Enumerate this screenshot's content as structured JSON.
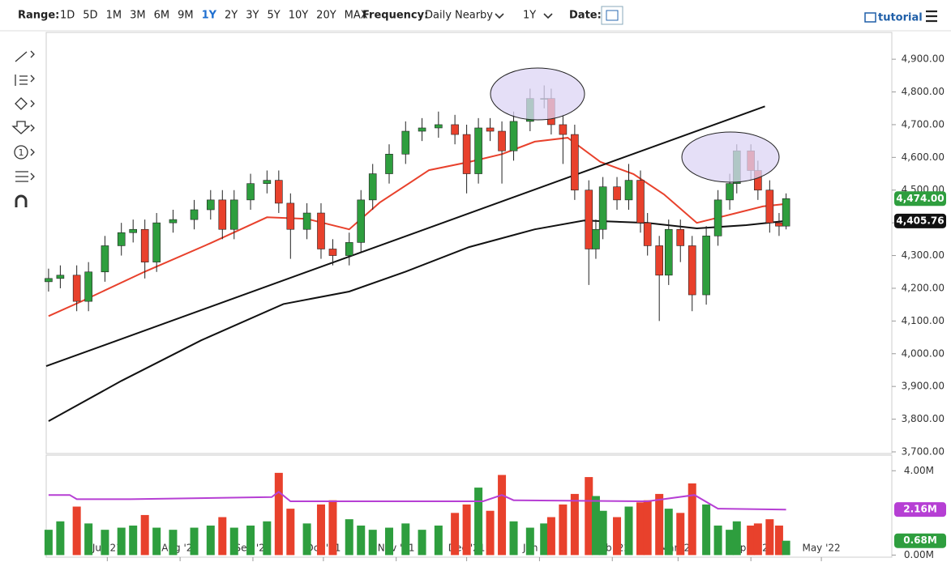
{
  "toolbar": {
    "range_label": "Range:",
    "ranges": [
      "1D",
      "5D",
      "1M",
      "3M",
      "6M",
      "9M",
      "1Y",
      "2Y",
      "3Y",
      "5Y",
      "10Y",
      "20Y",
      "MAX"
    ],
    "active_range": 6,
    "frequency_label": "Frequency:",
    "frequency": "Daily Nearby",
    "period": "1Y",
    "date_label": "Date:",
    "tutorial": "tutorial"
  },
  "chart_data": [
    {
      "type": "candlestick",
      "up_color": "#2e9e3e",
      "down_color": "#e8412c",
      "wick_color": "#222222",
      "xlim": [
        4,
        364
      ],
      "ylim": [
        3695,
        4982
      ],
      "xticks": [
        {
          "value": 30,
          "label": "Jul '21"
        },
        {
          "value": 61,
          "label": "Aug '21"
        },
        {
          "value": 92,
          "label": "Sep '21"
        },
        {
          "value": 122,
          "label": "Oct '21"
        },
        {
          "value": 153,
          "label": "Nov '21"
        },
        {
          "value": 183,
          "label": "Dec '21"
        },
        {
          "value": 214,
          "label": "Jan '22"
        },
        {
          "value": 245,
          "label": "Feb '22"
        },
        {
          "value": 273,
          "label": "Mar '22"
        },
        {
          "value": 304,
          "label": "Apr '22"
        },
        {
          "value": 334,
          "label": "May '22"
        }
      ],
      "yticks": [
        {
          "value": 3700,
          "label": "3,700.00"
        },
        {
          "value": 3800,
          "label": "3,800.00"
        },
        {
          "value": 3900,
          "label": "3,900.00"
        },
        {
          "value": 4000,
          "label": "4,000.00"
        },
        {
          "value": 4100,
          "label": "4,100.00"
        },
        {
          "value": 4200,
          "label": "4,200.00"
        },
        {
          "value": 4300,
          "label": "4,300.00"
        },
        {
          "value": 4400,
          "label": "4,400.00"
        },
        {
          "value": 4500,
          "label": "4,500.00"
        },
        {
          "value": 4600,
          "label": "4,600.00"
        },
        {
          "value": 4700,
          "label": "4,700.00"
        },
        {
          "value": 4800,
          "label": "4,800.00"
        },
        {
          "value": 4900,
          "label": "4,900.00"
        }
      ],
      "x": [
        5,
        10,
        17,
        22,
        29,
        36,
        41,
        46,
        51,
        58,
        67,
        74,
        79,
        84,
        91,
        98,
        103,
        108,
        115,
        121,
        126,
        133,
        138,
        143,
        150,
        157,
        164,
        171,
        178,
        183,
        188,
        193,
        198,
        203,
        210,
        216,
        219,
        224,
        229,
        235,
        238,
        241,
        247,
        252,
        257,
        260,
        265,
        269,
        274,
        279,
        285,
        290,
        295,
        298,
        304,
        307,
        312,
        316,
        319
      ],
      "open": [
        4220,
        4230,
        4240,
        4160,
        4250,
        4330,
        4370,
        4380,
        4280,
        4400,
        4410,
        4440,
        4470,
        4380,
        4470,
        4520,
        4530,
        4460,
        4380,
        4430,
        4320,
        4300,
        4340,
        4470,
        4550,
        4610,
        4680,
        4690,
        4700,
        4670,
        4550,
        4690,
        4680,
        4620,
        4710,
        4780,
        4780,
        4700,
        4670,
        4500,
        4320,
        4380,
        4510,
        4470,
        4530,
        4400,
        4330,
        4240,
        4380,
        4330,
        4180,
        4360,
        4470,
        4520,
        4620,
        4560,
        4500,
        4400,
        4390
      ],
      "high": [
        4260,
        4270,
        4270,
        4280,
        4360,
        4400,
        4410,
        4410,
        4430,
        4440,
        4470,
        4500,
        4500,
        4500,
        4550,
        4560,
        4560,
        4490,
        4460,
        4460,
        4350,
        4370,
        4500,
        4580,
        4640,
        4710,
        4720,
        4740,
        4730,
        4700,
        4720,
        4720,
        4710,
        4740,
        4810,
        4820,
        4810,
        4730,
        4700,
        4530,
        4410,
        4540,
        4540,
        4580,
        4560,
        4430,
        4360,
        4410,
        4410,
        4360,
        4390,
        4500,
        4550,
        4640,
        4640,
        4590,
        4530,
        4430,
        4490
      ],
      "low": [
        4190,
        4200,
        4130,
        4130,
        4220,
        4300,
        4340,
        4230,
        4250,
        4370,
        4380,
        4410,
        4350,
        4350,
        4440,
        4490,
        4430,
        4290,
        4350,
        4290,
        4270,
        4270,
        4310,
        4440,
        4520,
        4580,
        4650,
        4660,
        4640,
        4490,
        4520,
        4650,
        4520,
        4590,
        4680,
        4750,
        4670,
        4580,
        4470,
        4210,
        4290,
        4350,
        4440,
        4440,
        4370,
        4300,
        4100,
        4210,
        4280,
        4130,
        4150,
        4330,
        4440,
        4490,
        4530,
        4470,
        4370,
        4360,
        4380
      ],
      "close": [
        4230,
        4240,
        4160,
        4250,
        4330,
        4370,
        4380,
        4280,
        4400,
        4410,
        4440,
        4470,
        4380,
        4470,
        4520,
        4530,
        4460,
        4380,
        4430,
        4320,
        4300,
        4340,
        4470,
        4550,
        4610,
        4680,
        4690,
        4700,
        4670,
        4550,
        4690,
        4680,
        4620,
        4710,
        4780,
        4780,
        4700,
        4670,
        4500,
        4320,
        4380,
        4510,
        4470,
        4530,
        4400,
        4330,
        4240,
        4380,
        4330,
        4180,
        4360,
        4470,
        4520,
        4620,
        4560,
        4500,
        4400,
        4390,
        4474
      ],
      "last_label": {
        "value": 4474,
        "label": "4,474.00",
        "color": "#2e9e3e"
      },
      "lines": [
        {
          "color": "#e8412c",
          "x": [
            5,
            19,
            46,
            74,
            98,
            115,
            133,
            146,
            167,
            184,
            198,
            212,
            226,
            240,
            254,
            267,
            281,
            295,
            309,
            319
          ],
          "values": [
            4115,
            4160,
            4251,
            4338,
            4417,
            4412,
            4380,
            4462,
            4561,
            4586,
            4610,
            4648,
            4660,
            4586,
            4549,
            4487,
            4400,
            4425,
            4450,
            4458
          ]
        },
        {
          "color": "#111111",
          "x": [
            5,
            36,
            70,
            105,
            133,
            157,
            184,
            212,
            233,
            260,
            281,
            302,
            319
          ],
          "values": [
            3794,
            3917,
            4041,
            4152,
            4190,
            4251,
            4326,
            4380,
            4407,
            4400,
            4383,
            4393,
            4405.76
          ],
          "value_labels": [
            null,
            null,
            null,
            null,
            null,
            null,
            null,
            null,
            null,
            null,
            null,
            null,
            "4,405.76"
          ]
        },
        {
          "color": "#111111",
          "x": [
            4,
            310
          ],
          "values": [
            3962,
            4756
          ]
        }
      ]
    },
    {
      "type": "bar",
      "up_color": "#2e9e3e",
      "down_color": "#e8412c",
      "xlim": [
        4,
        364
      ],
      "ylim": [
        -0.1,
        4.74
      ],
      "yticks": [
        {
          "value": 0,
          "label": "0.00M"
        },
        {
          "value": 4,
          "label": "4.00M"
        }
      ],
      "values": [
        1.2,
        1.6,
        2.3,
        1.5,
        1.2,
        1.3,
        1.4,
        1.9,
        1.3,
        1.2,
        1.3,
        1.4,
        1.8,
        1.3,
        1.4,
        1.6,
        3.9,
        2.2,
        1.5,
        2.4,
        2.6,
        1.7,
        1.4,
        1.2,
        1.3,
        1.5,
        1.2,
        1.4,
        2.0,
        2.4,
        3.2,
        2.1,
        3.8,
        1.6,
        1.3,
        1.5,
        1.8,
        2.4,
        2.9,
        3.7,
        2.8,
        2.1,
        1.8,
        2.3,
        2.5,
        2.6,
        2.9,
        2.2,
        2.0,
        3.4,
        2.4,
        1.4,
        1.2,
        1.6,
        1.4,
        1.5,
        1.7,
        1.4,
        0.68
      ],
      "value_labels": [
        null,
        null,
        null,
        null,
        null,
        null,
        null,
        null,
        null,
        null,
        null,
        null,
        null,
        null,
        null,
        null,
        null,
        null,
        null,
        null,
        null,
        null,
        null,
        null,
        null,
        null,
        null,
        null,
        null,
        null,
        null,
        null,
        null,
        null,
        null,
        null,
        null,
        null,
        null,
        null,
        null,
        null,
        null,
        null,
        null,
        null,
        null,
        null,
        null,
        null,
        null,
        null,
        null,
        null,
        null,
        null,
        null,
        null,
        "0.68M"
      ],
      "average": {
        "color": "#b63fd4",
        "x": [
          5,
          14,
          17,
          40,
          100,
          103,
          108,
          180,
          190,
          198,
          203,
          260,
          280,
          290,
          319
        ],
        "values": [
          2.85,
          2.85,
          2.65,
          2.65,
          2.75,
          3.0,
          2.55,
          2.55,
          2.55,
          2.85,
          2.6,
          2.55,
          2.85,
          2.2,
          2.16
        ],
        "value_labels": [
          null,
          null,
          null,
          null,
          null,
          null,
          null,
          null,
          null,
          null,
          null,
          null,
          null,
          null,
          "2.16M"
        ]
      }
    }
  ]
}
